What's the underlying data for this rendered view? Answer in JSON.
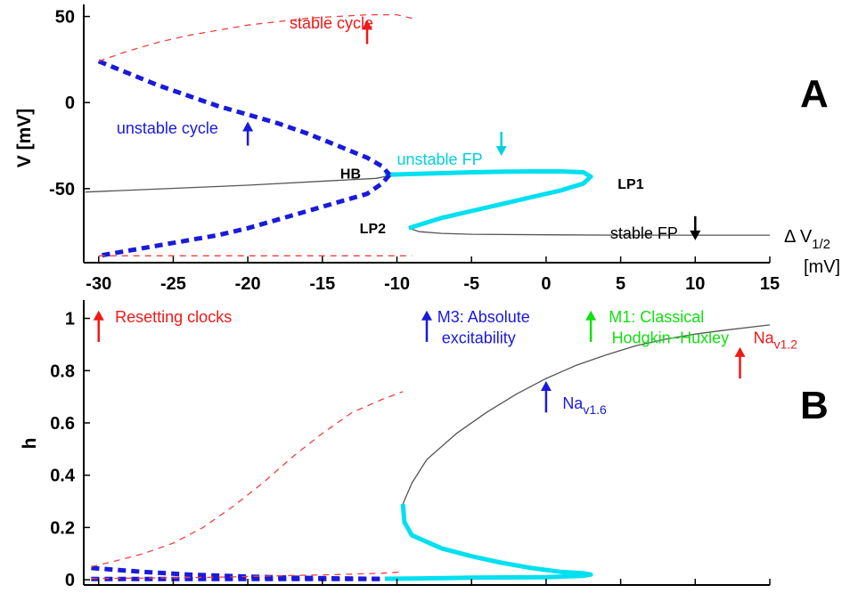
{
  "chart_data": [
    {
      "panel": "A",
      "type": "line",
      "ylabel": "V [mV]",
      "xlabel": "Δ V1/2 [mV]",
      "xlim": [
        -31,
        15
      ],
      "ylim": [
        -93,
        57
      ],
      "xticks": [
        -30,
        -25,
        -20,
        -15,
        -10,
        -5,
        0,
        5,
        10,
        15
      ],
      "yticks": [
        50,
        0,
        -50
      ],
      "grid": false,
      "series": [
        {
          "style": "stable-fixed-point",
          "color": "#555555",
          "x": [
            -30.9,
            -20,
            -11.4,
            -10.2,
            -8
          ],
          "y": [
            -52,
            -48,
            -44,
            -42,
            -42
          ]
        },
        {
          "style": "stable-fixed-point",
          "color": "#555555",
          "x": [
            -9.2,
            -8.5,
            -7,
            -5,
            0,
            5,
            10,
            15
          ],
          "y": [
            -73,
            -75,
            -76,
            -76.5,
            -76.8,
            -77,
            -77,
            -77
          ]
        },
        {
          "style": "unstable-fixed-point",
          "color": "#00e0f0",
          "x": [
            -10.8,
            -9,
            -7,
            -5,
            -3,
            -1,
            1,
            2.5,
            3,
            2.5,
            1,
            -1,
            -3,
            -5,
            -7,
            -8.5,
            -9.2
          ],
          "y": [
            -42,
            -41.5,
            -41,
            -40.5,
            -40.2,
            -40,
            -40,
            -40.5,
            -43,
            -47,
            -51,
            -55,
            -59,
            -63,
            -67,
            -71,
            -73
          ]
        },
        {
          "style": "unstable-cycle",
          "color": "#1a1adc",
          "x": [
            -30,
            -28,
            -26,
            -24,
            -22,
            -20,
            -18,
            -16,
            -14,
            -12,
            -11,
            -10.5
          ],
          "y": [
            24,
            17,
            10,
            4,
            -2,
            -7,
            -12,
            -18,
            -25,
            -32,
            -37,
            -42
          ]
        },
        {
          "style": "unstable-cycle",
          "color": "#1a1adc",
          "x": [
            -10.5,
            -11,
            -12,
            -14,
            -16,
            -18,
            -20,
            -22,
            -24,
            -26,
            -28,
            -30
          ],
          "y": [
            -42,
            -47,
            -53,
            -58,
            -63,
            -68,
            -73,
            -77,
            -80,
            -83,
            -86,
            -89
          ]
        },
        {
          "style": "stable-cycle",
          "color": "#f04040",
          "x": [
            -30,
            -28,
            -26,
            -24,
            -22,
            -20,
            -18,
            -16,
            -14,
            -12,
            -10,
            -9
          ],
          "y": [
            24,
            30,
            35,
            39,
            42,
            45,
            47,
            49,
            50,
            51,
            51,
            49
          ]
        },
        {
          "style": "stable-cycle",
          "color": "#f04040",
          "x": [
            -30,
            -25,
            -20,
            -15,
            -10,
            -9
          ],
          "y": [
            -89,
            -89,
            -89,
            -89,
            -89,
            -89
          ]
        }
      ],
      "points": [
        {
          "label": "HB",
          "x": -13.8,
          "y": -44
        },
        {
          "label": "LP1",
          "x": 4.8,
          "y": -50
        },
        {
          "label": "LP2",
          "x": -12.5,
          "y": -76
        }
      ],
      "annotations": [
        {
          "text": "stable cycle",
          "x": -17.2,
          "y": 43,
          "color": "#f01818"
        },
        {
          "text": "unstable cycle",
          "x": -28.8,
          "y": -18,
          "color": "#1a1adc"
        },
        {
          "text": "unstable FP",
          "x": -10,
          "y": -36,
          "color": "#00d0e0"
        },
        {
          "text": "stable FP",
          "x": 4.3,
          "y": -79,
          "color": "#000000"
        }
      ],
      "arrows": [
        {
          "x": -12,
          "y_tail": 34,
          "y_head": 48,
          "color": "#f01818"
        },
        {
          "x": -20,
          "y_tail": -25,
          "y_head": -11,
          "color": "#1a1adc"
        },
        {
          "x": -3,
          "y_tail": -17,
          "y_head": -31,
          "color": "#00d0e0"
        },
        {
          "x": 10,
          "y_tail": -66,
          "y_head": -80,
          "color": "#000000"
        }
      ],
      "axis_label_parts": {
        "delta": "Δ V",
        "sub": "1/2",
        "unit": "[mV]"
      }
    },
    {
      "panel": "B",
      "type": "line",
      "ylabel": "h",
      "xlim": [
        -31,
        15
      ],
      "ylim": [
        -0.02,
        1.07
      ],
      "xticks": [
        -30,
        -25,
        -20,
        -15,
        -10,
        -5,
        0,
        5,
        10,
        15
      ],
      "yticks": [
        0,
        0.2,
        0.4,
        0.6,
        0.8,
        1
      ],
      "grid": false,
      "series": [
        {
          "style": "stable-fixed-point",
          "color": "#555555",
          "x": [
            -9.6,
            -9,
            -8,
            -6,
            -4,
            -2,
            0,
            2,
            4,
            6,
            8,
            10,
            12,
            15
          ],
          "y": [
            0.29,
            0.37,
            0.46,
            0.56,
            0.64,
            0.71,
            0.77,
            0.82,
            0.86,
            0.895,
            0.92,
            0.94,
            0.955,
            0.975
          ]
        },
        {
          "style": "unstable-fixed-point",
          "color": "#00e0f0",
          "x": [
            -9.6,
            -9.5,
            -9,
            -7,
            -5,
            -3,
            -1,
            1,
            2.5,
            3,
            2.5,
            0,
            -5,
            -9,
            -10.8
          ],
          "y": [
            0.29,
            0.22,
            0.17,
            0.12,
            0.09,
            0.065,
            0.045,
            0.03,
            0.025,
            0.02,
            0.015,
            0.01,
            0.008,
            0.005,
            0.004
          ]
        },
        {
          "style": "unstable-cycle",
          "color": "#1a1adc",
          "x": [
            -30.5,
            -27,
            -24,
            -20,
            -16,
            -12,
            -10.8
          ],
          "y": [
            0.045,
            0.03,
            0.02,
            0.012,
            0.007,
            0.004,
            0.003
          ]
        },
        {
          "style": "unstable-cycle",
          "color": "#1a1adc",
          "x": [
            -30.5,
            -27,
            -24,
            -20,
            -16,
            -12,
            -10.8
          ],
          "y": [
            0.003,
            0.003,
            0.003,
            0.003,
            0.003,
            0.003,
            0.003
          ]
        },
        {
          "style": "stable-cycle",
          "color": "#f04040",
          "x": [
            -30.5,
            -29,
            -27,
            -25,
            -23,
            -21,
            -19,
            -17,
            -15,
            -13,
            -11,
            -9.6
          ],
          "y": [
            0.05,
            0.07,
            0.1,
            0.14,
            0.2,
            0.28,
            0.37,
            0.47,
            0.56,
            0.64,
            0.69,
            0.72
          ]
        },
        {
          "style": "stable-cycle",
          "color": "#f04040",
          "x": [
            -30.5,
            -26,
            -22,
            -18,
            -14,
            -11,
            -9.6
          ],
          "y": [
            0.005,
            0.007,
            0.01,
            0.015,
            0.02,
            0.025,
            0.03
          ]
        }
      ],
      "annotations": [
        {
          "text": "Resetting clocks",
          "x": -28.9,
          "y": 0.985,
          "color": "#f01818"
        },
        {
          "text": "M3: Absolute",
          "x": -7.3,
          "y": 0.985,
          "color": "#1a1adc"
        },
        {
          "text": "excitability",
          "x": -7,
          "y": 0.905,
          "color": "#1a1adc"
        },
        {
          "text": "M1: Classical",
          "x": 4.2,
          "y": 0.985,
          "color": "#10e010"
        },
        {
          "text": "Hodgkin−Huxley",
          "x": 4.4,
          "y": 0.905,
          "color": "#10e010"
        },
        {
          "text": "Na",
          "x": 13.9,
          "y": 0.905,
          "color": "#f01818",
          "sub": "v1.2"
        },
        {
          "text": "Na",
          "x": 1.1,
          "y": 0.655,
          "color": "#1a1adc",
          "sub": "v1.6"
        }
      ],
      "arrows": [
        {
          "x": -30,
          "y_tail": 0.91,
          "y_head": 1.03,
          "color": "#f01818"
        },
        {
          "x": -8,
          "y_tail": 0.91,
          "y_head": 1.03,
          "color": "#1a1adc"
        },
        {
          "x": 3,
          "y_tail": 0.91,
          "y_head": 1.03,
          "color": "#10e010"
        },
        {
          "x": 13,
          "y_tail": 0.77,
          "y_head": 0.89,
          "color": "#f01818"
        },
        {
          "x": 0,
          "y_tail": 0.64,
          "y_head": 0.76,
          "color": "#1a1adc"
        }
      ]
    }
  ]
}
